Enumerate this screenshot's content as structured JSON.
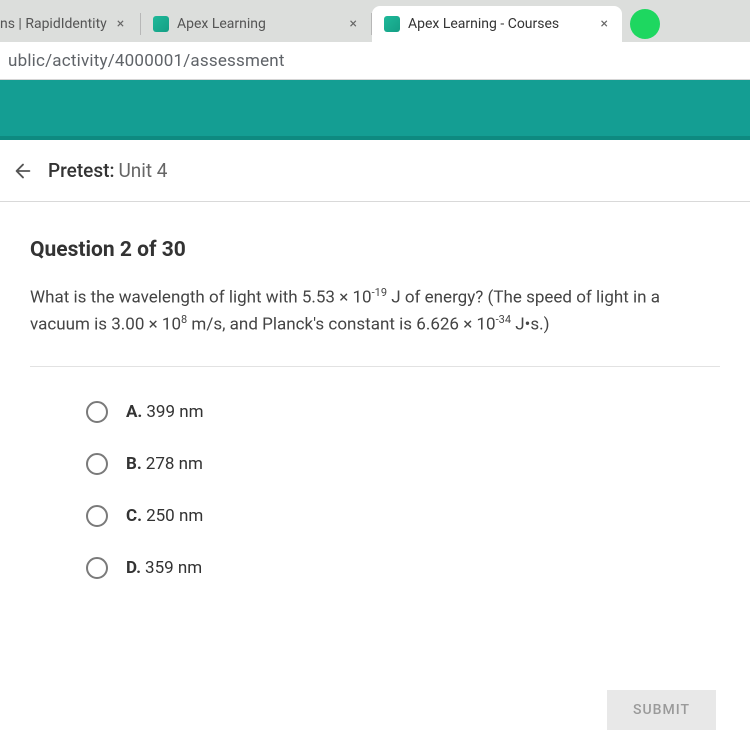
{
  "tabs": [
    {
      "label": "ns | RapidIdentity",
      "active": false,
      "hasFavicon": false
    },
    {
      "label": "Apex Learning",
      "active": false,
      "hasFavicon": true
    },
    {
      "label": "Apex Learning - Courses",
      "active": true,
      "hasFavicon": true
    }
  ],
  "close_glyph": "×",
  "address": "ublic/activity/4000001/assessment",
  "page_title_prefix": "Pretest:",
  "page_title_suffix": "Unit 4",
  "question_counter": "Question 2 of 30",
  "question_html": "What is the wavelength of light with 5.53 × 10<sup>-19</sup> J of energy? (The speed of light in a vacuum is 3.00 × 10<sup>8</sup> m/s, and Planck's constant is 6.626 × 10<sup>-34</sup> J•s.)",
  "options": [
    {
      "letter": "A.",
      "text": "399 nm"
    },
    {
      "letter": "B.",
      "text": "278 nm"
    },
    {
      "letter": "C.",
      "text": "250 nm"
    },
    {
      "letter": "D.",
      "text": "359 nm"
    }
  ],
  "submit_label": "SUBMIT",
  "colors": {
    "teal": "#149e93",
    "teal_dark": "#0e8a80",
    "tab_bg": "#dcdedc",
    "text": "#333333",
    "muted": "#666666"
  }
}
